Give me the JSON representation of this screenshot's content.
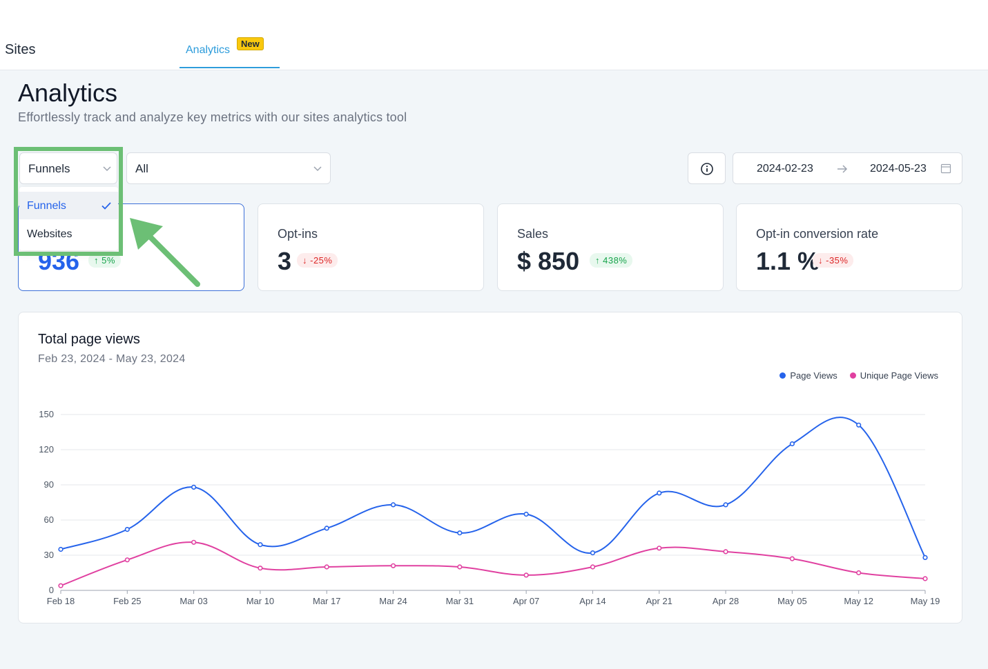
{
  "header": {
    "brand": "Sites",
    "tab_label": "Analytics",
    "tab_badge": "New"
  },
  "page": {
    "title": "Analytics",
    "subtitle": "Effortlessly track and analyze key metrics with our sites analytics tool"
  },
  "filters": {
    "type_value": "Funnels",
    "scope_value": "All",
    "date_start": "2024-02-23",
    "date_end": "2024-05-23"
  },
  "dropdown": {
    "options": [
      {
        "label": "Funnels",
        "selected": true
      },
      {
        "label": "Websites",
        "selected": false
      }
    ]
  },
  "cards": [
    {
      "label": "",
      "value": "936",
      "change": "↑ 5%",
      "trend": "up"
    },
    {
      "label": "Opt-ins",
      "value": "3",
      "change": "↓ -25%",
      "trend": "down"
    },
    {
      "label": "Sales",
      "value": "$ 850",
      "change": "↑ 438%",
      "trend": "up"
    },
    {
      "label": "Opt-in conversion rate",
      "value": "1.1 %",
      "change": "↓ -35%",
      "trend": "down"
    }
  ],
  "colors": {
    "page_views": "#2563eb",
    "unique_page_views": "#e040a0",
    "highlight": "#6cbf75"
  },
  "chart_data": {
    "type": "line",
    "title": "Total page views",
    "subtitle": "Feb 23, 2024 - May 23, 2024",
    "categories": [
      "Feb 18",
      "Feb 25",
      "Mar 03",
      "Mar 10",
      "Mar 17",
      "Mar 24",
      "Mar 31",
      "Apr 07",
      "Apr 14",
      "Apr 21",
      "Apr 28",
      "May 05",
      "May 12",
      "May 19"
    ],
    "series": [
      {
        "name": "Page Views",
        "values": [
          35,
          52,
          88,
          39,
          53,
          73,
          49,
          65,
          32,
          83,
          73,
          125,
          141,
          28
        ]
      },
      {
        "name": "Unique Page Views",
        "values": [
          4,
          26,
          41,
          19,
          20,
          21,
          20,
          13,
          20,
          36,
          33,
          27,
          15,
          10
        ]
      }
    ],
    "yticks": [
      0,
      30,
      60,
      90,
      120,
      150
    ],
    "ylim": [
      0,
      150
    ],
    "grid": true,
    "legend_position": "top-right"
  }
}
